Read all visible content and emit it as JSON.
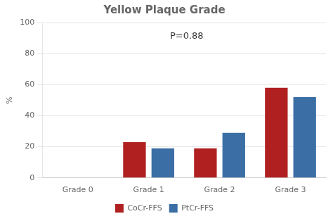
{
  "chart_data": {
    "type": "bar",
    "title": "Yellow Plaque Grade",
    "ylabel": "%",
    "categories": [
      "Grade 0",
      "Grade 1",
      "Grade 2",
      "Grade 3"
    ],
    "series": [
      {
        "name": "CoCr-FFS",
        "color": "#B02020",
        "values": [
          0,
          23,
          19,
          58
        ]
      },
      {
        "name": "PtCr-FFS",
        "color": "#3A6EA5",
        "values": [
          0,
          19,
          29,
          52
        ]
      }
    ],
    "ylim": [
      0,
      100
    ],
    "yticks": [
      0,
      20,
      40,
      60,
      80,
      100
    ],
    "annotation": "P=0.88",
    "grid": true,
    "legend": "bottom"
  }
}
